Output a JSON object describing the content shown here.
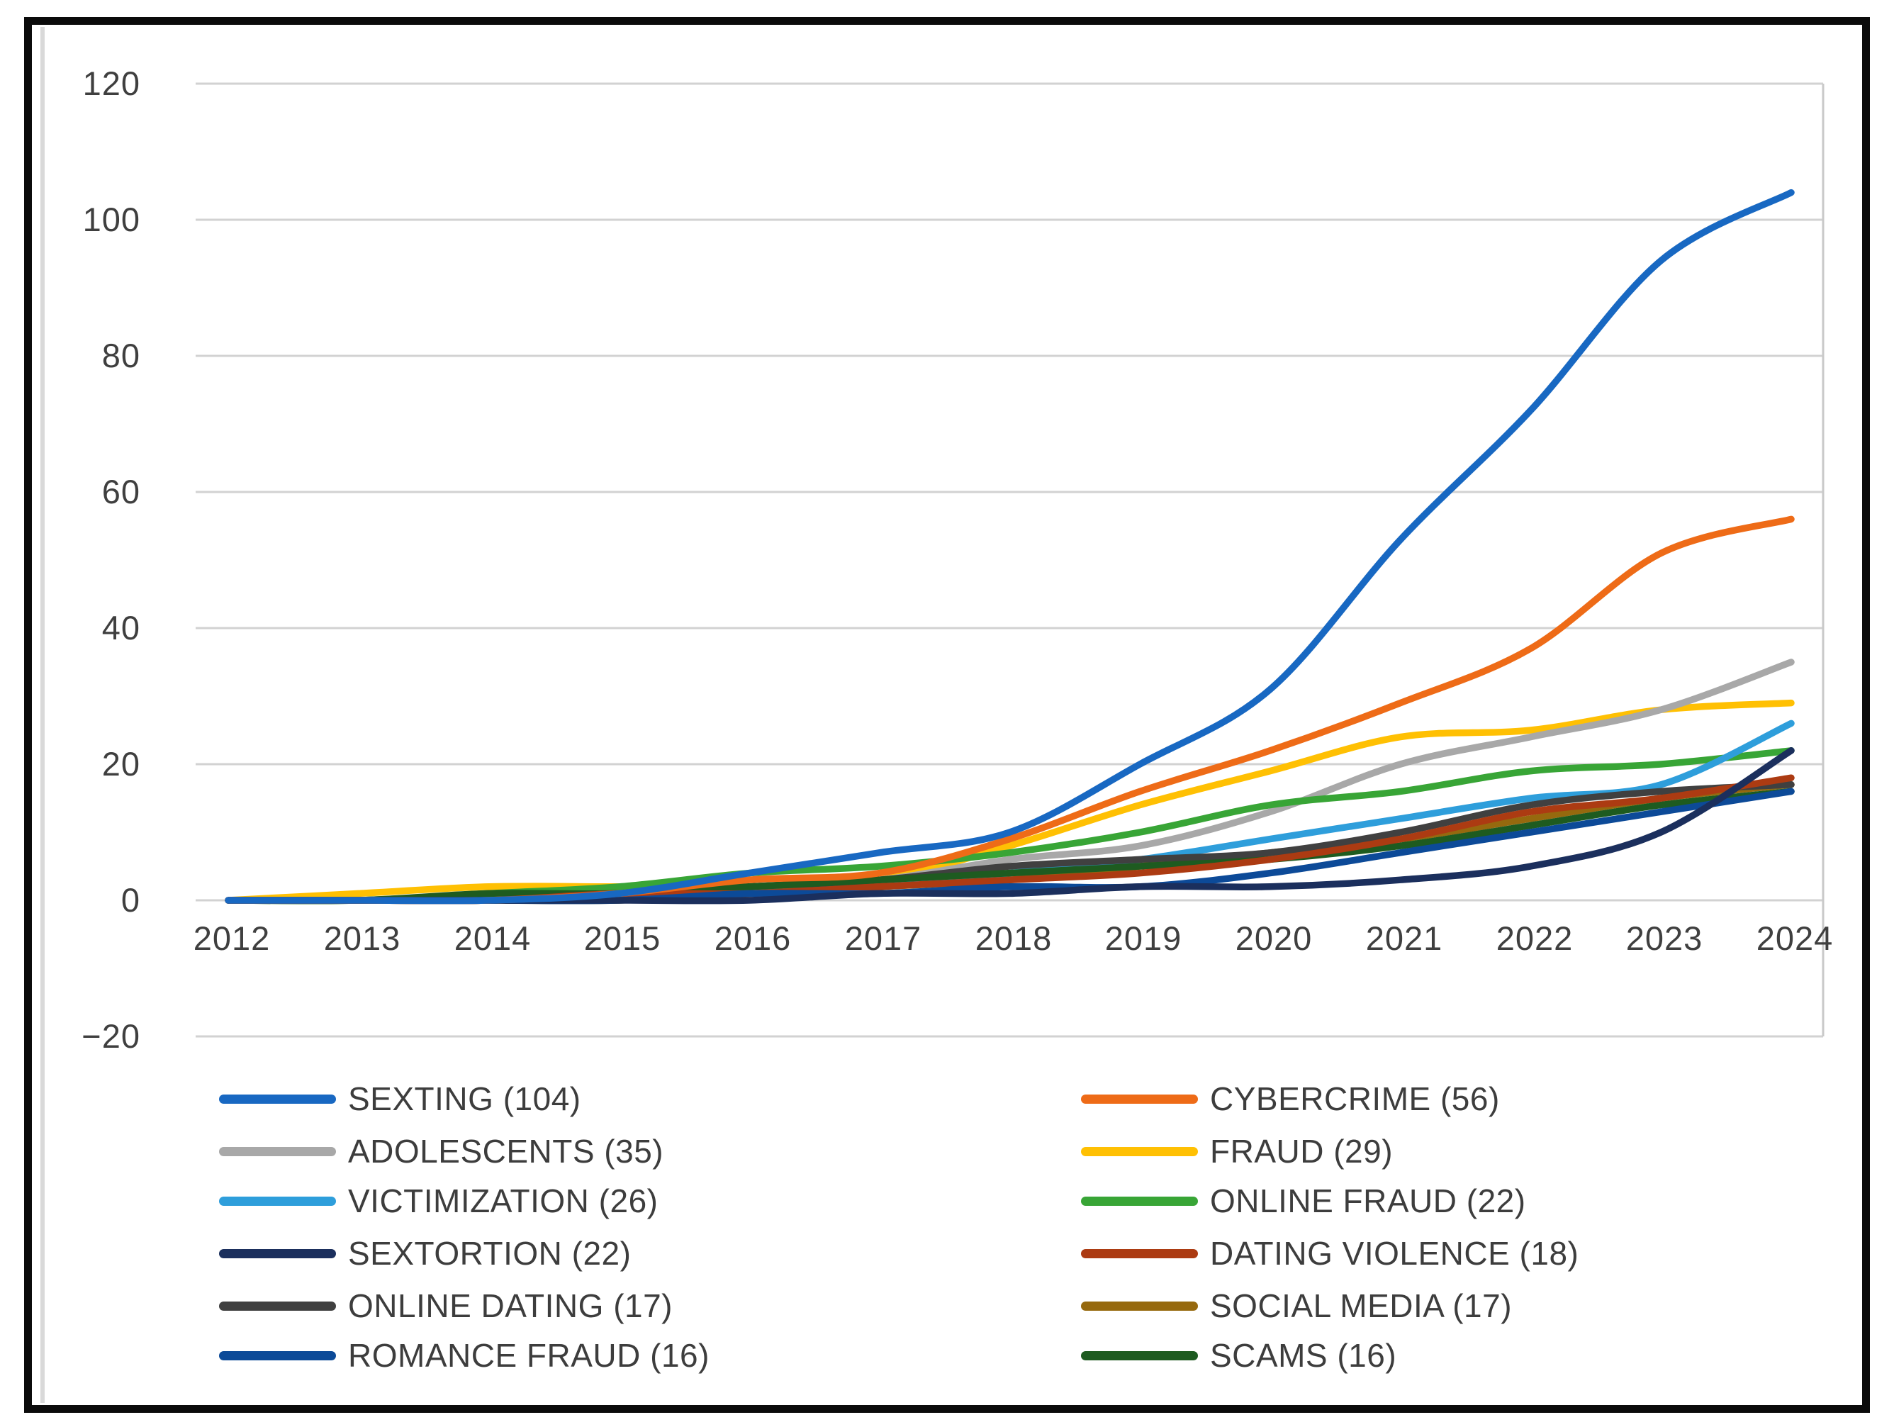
{
  "chart_data": {
    "type": "line",
    "title": "",
    "categories": [
      2012,
      2013,
      2014,
      2015,
      2016,
      2017,
      2018,
      2019,
      2020,
      2021,
      2022,
      2023,
      2024
    ],
    "x_tick_labels": [
      "2012",
      "2013",
      "2014",
      "2015",
      "2016",
      "2017",
      "2018",
      "2019",
      "2020",
      "2021",
      "2022",
      "2023",
      "2024"
    ],
    "y_ticks": [
      120,
      100,
      80,
      60,
      40,
      20,
      0,
      -20
    ],
    "y_tick_labels": [
      "120",
      "100",
      "80",
      "60",
      "40",
      "20",
      "0",
      "−20"
    ],
    "ylim": [
      -20,
      120
    ],
    "grid": "horizontal",
    "legend_position": "bottom-two-columns",
    "series": [
      {
        "name": "SEXTING",
        "total": 104,
        "legend_label": "SEXTING (104)",
        "color": "#1868C2",
        "values": [
          0,
          0,
          0,
          1,
          4,
          7,
          10,
          20,
          31,
          53,
          72,
          94,
          104
        ]
      },
      {
        "name": "CYBERCRIME",
        "total": 56,
        "legend_label": "CYBERCRIME (56)",
        "color": "#EE6B17",
        "values": [
          0,
          0,
          0,
          1,
          3,
          4,
          9,
          16,
          22,
          29,
          37,
          51,
          56
        ]
      },
      {
        "name": "ADOLESCENTS",
        "total": 35,
        "legend_label": "ADOLESCENTS (35)",
        "color": "#A8A8A8",
        "values": [
          0,
          0,
          0,
          1,
          2,
          3,
          6,
          8,
          13,
          20,
          24,
          28,
          35
        ]
      },
      {
        "name": "FRAUD",
        "total": 29,
        "legend_label": "FRAUD (29)",
        "color": "#FFC003",
        "values": [
          0,
          1,
          2,
          2,
          2,
          3,
          8,
          14,
          19,
          24,
          25,
          28,
          29
        ]
      },
      {
        "name": "VICTIMIZATION",
        "total": 26,
        "legend_label": "VICTIMIZATION (26)",
        "color": "#2E9EDB",
        "values": [
          0,
          0,
          0,
          1,
          1,
          2,
          4,
          6,
          9,
          12,
          15,
          17,
          26
        ]
      },
      {
        "name": "ONLINE FRAUD",
        "total": 22,
        "legend_label": "ONLINE FRAUD (22)",
        "color": "#38A536",
        "values": [
          0,
          0,
          1,
          2,
          4,
          5,
          7,
          10,
          14,
          16,
          19,
          20,
          22
        ]
      },
      {
        "name": "SEXTORTION",
        "total": 22,
        "legend_label": "SEXTORTION (22)",
        "color": "#1B2F5D",
        "values": [
          0,
          0,
          0,
          0,
          0,
          1,
          1,
          2,
          2,
          3,
          5,
          10,
          22
        ]
      },
      {
        "name": "DATING VIOLENCE",
        "total": 18,
        "legend_label": "DATING VIOLENCE (18)",
        "color": "#AC3B12",
        "values": [
          0,
          0,
          0,
          1,
          1,
          2,
          3,
          4,
          6,
          9,
          13,
          15,
          18
        ]
      },
      {
        "name": "ONLINE DATING",
        "total": 17,
        "legend_label": "ONLINE DATING (17)",
        "color": "#404040",
        "values": [
          0,
          0,
          0,
          1,
          2,
          3,
          5,
          6,
          7,
          10,
          14,
          16,
          17
        ]
      },
      {
        "name": "SOCIAL MEDIA",
        "total": 17,
        "legend_label": "SOCIAL MEDIA (17)",
        "color": "#96690E",
        "values": [
          0,
          0,
          0,
          0,
          1,
          2,
          3,
          5,
          7,
          9,
          12,
          15,
          17
        ]
      },
      {
        "name": "ROMANCE FRAUD",
        "total": 16,
        "legend_label": "ROMANCE FRAUD (16)",
        "color": "#0C4A98",
        "values": [
          0,
          0,
          0,
          0,
          1,
          1,
          2,
          2,
          4,
          7,
          10,
          13,
          16
        ]
      },
      {
        "name": "SCAMS",
        "total": 16,
        "legend_label": "SCAMS (16)",
        "color": "#1E5B20",
        "values": [
          0,
          0,
          1,
          1,
          2,
          3,
          4,
          5,
          6,
          8,
          11,
          14,
          16
        ]
      }
    ]
  }
}
